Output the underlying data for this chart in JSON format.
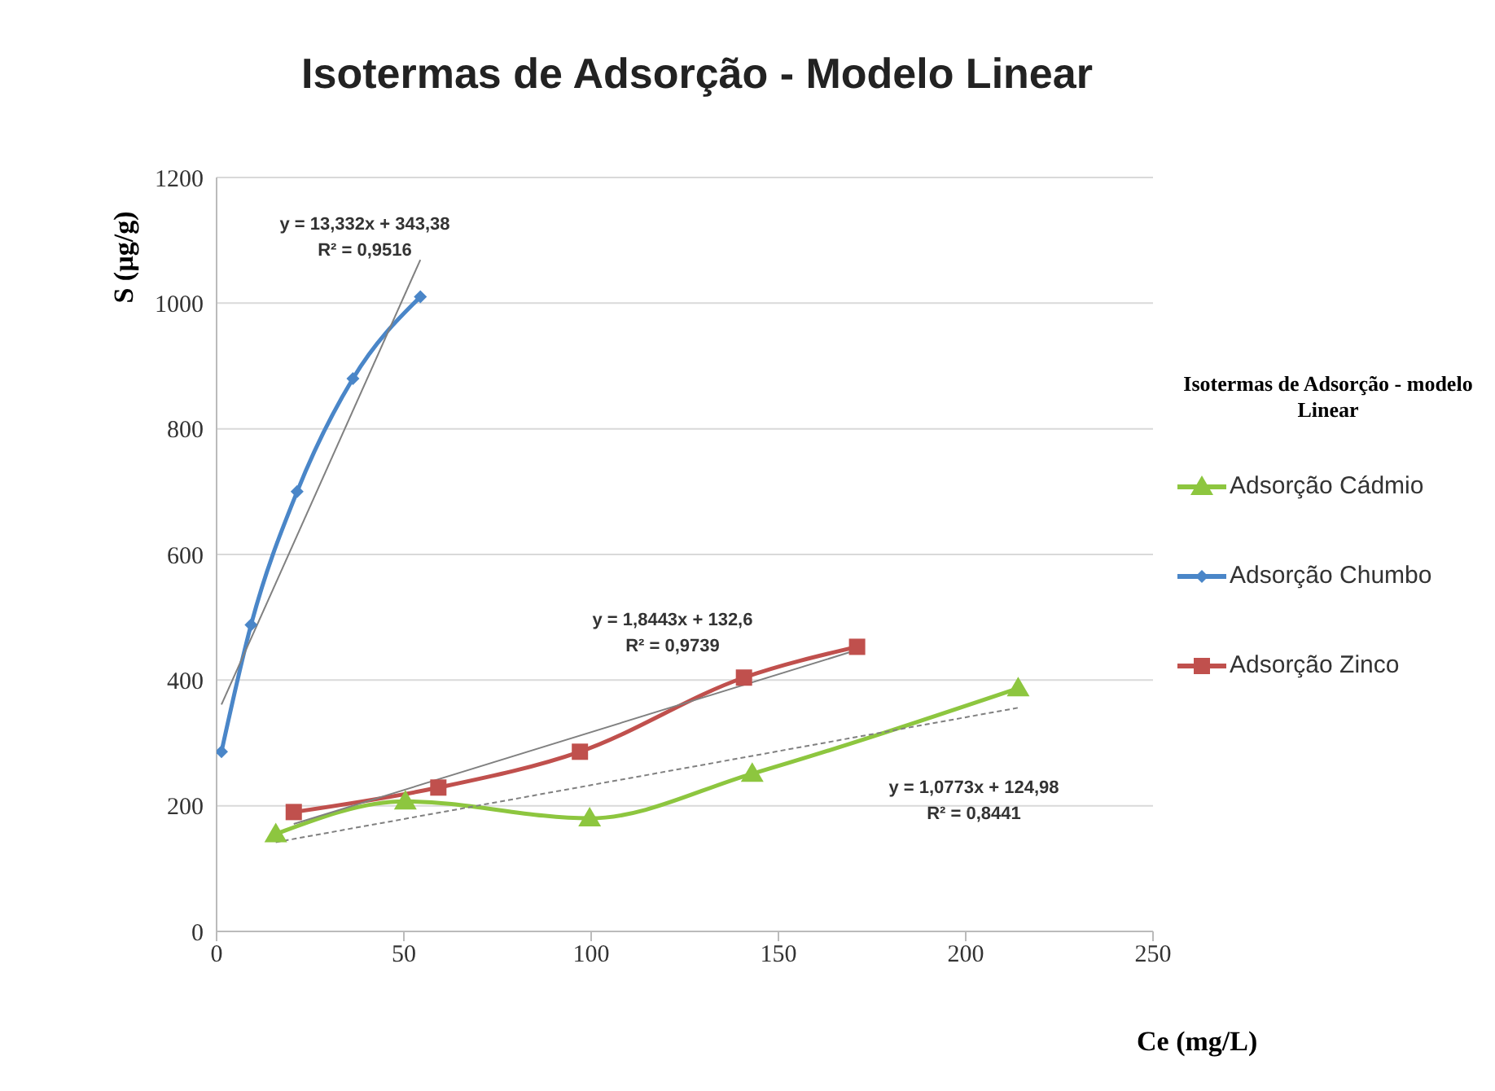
{
  "chart_data": {
    "type": "line",
    "title": "Isotermas de Adsorção - Modelo Linear",
    "xlabel": "Ce (mg/L)",
    "ylabel": "S (µg/g)",
    "legend_title": "Isotermas de Adsorção - modelo Linear",
    "xlim": [
      0,
      250
    ],
    "xticks": [
      0,
      50,
      100,
      150,
      200,
      250
    ],
    "ylim": [
      0,
      1200
    ],
    "yticks": [
      0,
      200,
      400,
      600,
      800,
      1000,
      1200
    ],
    "grid": "y",
    "legend": "right",
    "series": [
      {
        "name": "Adsorção Cádmio",
        "color": "#8dc63f",
        "marker": "triangle",
        "x": [
          15.8,
          50.4,
          99.6,
          143,
          214
        ],
        "values": [
          155,
          207,
          180,
          251,
          387
        ]
      },
      {
        "name": "Adsorção Chumbo",
        "color": "#4a86c8",
        "marker": "diamond",
        "x": [
          1.3,
          9.2,
          21.5,
          36.4,
          54.4
        ],
        "values": [
          286,
          488,
          700,
          880,
          1010
        ]
      },
      {
        "name": "Adsorção Zinco",
        "color": "#c0504d",
        "marker": "square",
        "x": [
          20.6,
          59.2,
          97,
          140.8,
          171
        ],
        "values": [
          190,
          229,
          286,
          404,
          453
        ]
      },
      {
        "type": "line",
        "color": "#808080",
        "marker": "none",
        "line_style": "dashed",
        "x": [
          15.8,
          214
        ],
        "values": [
          142,
          356
        ]
      },
      {
        "type": "line",
        "color": "#808080",
        "marker": "none",
        "line_style": "solid",
        "x": [
          1.3,
          54.4
        ],
        "values": [
          361,
          1069
        ]
      },
      {
        "type": "line",
        "color": "#808080",
        "marker": "none",
        "line_style": "solid",
        "x": [
          20.6,
          171
        ],
        "values": [
          171,
          448
        ]
      }
    ],
    "annotations": [
      "y = 13,332x + 343,38",
      "R² = 0,9516",
      "y = 1,8443x + 132,6",
      "R² = 0,9739",
      "y = 1,0773x + 124,98",
      "R² = 0,8441"
    ]
  }
}
